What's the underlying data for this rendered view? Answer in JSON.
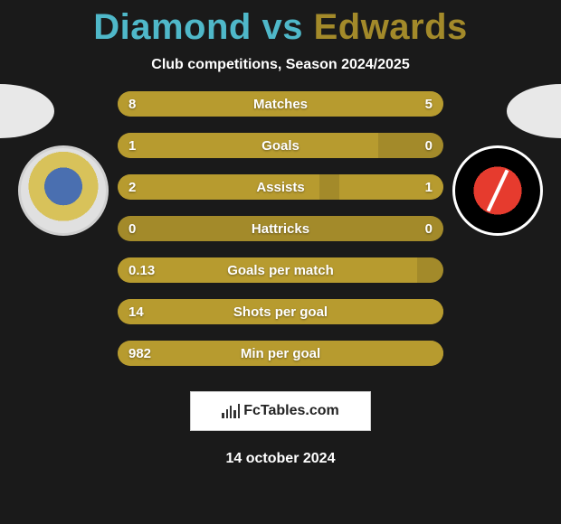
{
  "title": {
    "player1": "Diamond",
    "vs": "vs",
    "player2": "Edwards",
    "player1_color": "#4fb8c9",
    "player2_color": "#a38a2a"
  },
  "subtitle": "Club competitions, Season 2024/2025",
  "crest_left_hint": "PORT COUNTY",
  "crest_right_hint": "CHARLTON ATHLETIC",
  "bars": [
    {
      "label": "Matches",
      "left": "8",
      "right": "5",
      "left_pct": 62,
      "right_pct": 38
    },
    {
      "label": "Goals",
      "left": "1",
      "right": "0",
      "left_pct": 80,
      "right_pct": 0
    },
    {
      "label": "Assists",
      "left": "2",
      "right": "1",
      "left_pct": 62,
      "right_pct": 32
    },
    {
      "label": "Hattricks",
      "left": "0",
      "right": "0",
      "left_pct": 0,
      "right_pct": 0
    },
    {
      "label": "Goals per match",
      "left": "0.13",
      "right": "",
      "left_pct": 92,
      "right_pct": 0
    },
    {
      "label": "Shots per goal",
      "left": "14",
      "right": "",
      "left_pct": 100,
      "right_pct": 0
    },
    {
      "label": "Min per goal",
      "left": "982",
      "right": "",
      "left_pct": 100,
      "right_pct": 0
    }
  ],
  "bar_colors": {
    "track": "#a38a2a",
    "fill": "#b79b2f"
  },
  "logo_text": "FcTables.com",
  "date": "14 october 2024"
}
